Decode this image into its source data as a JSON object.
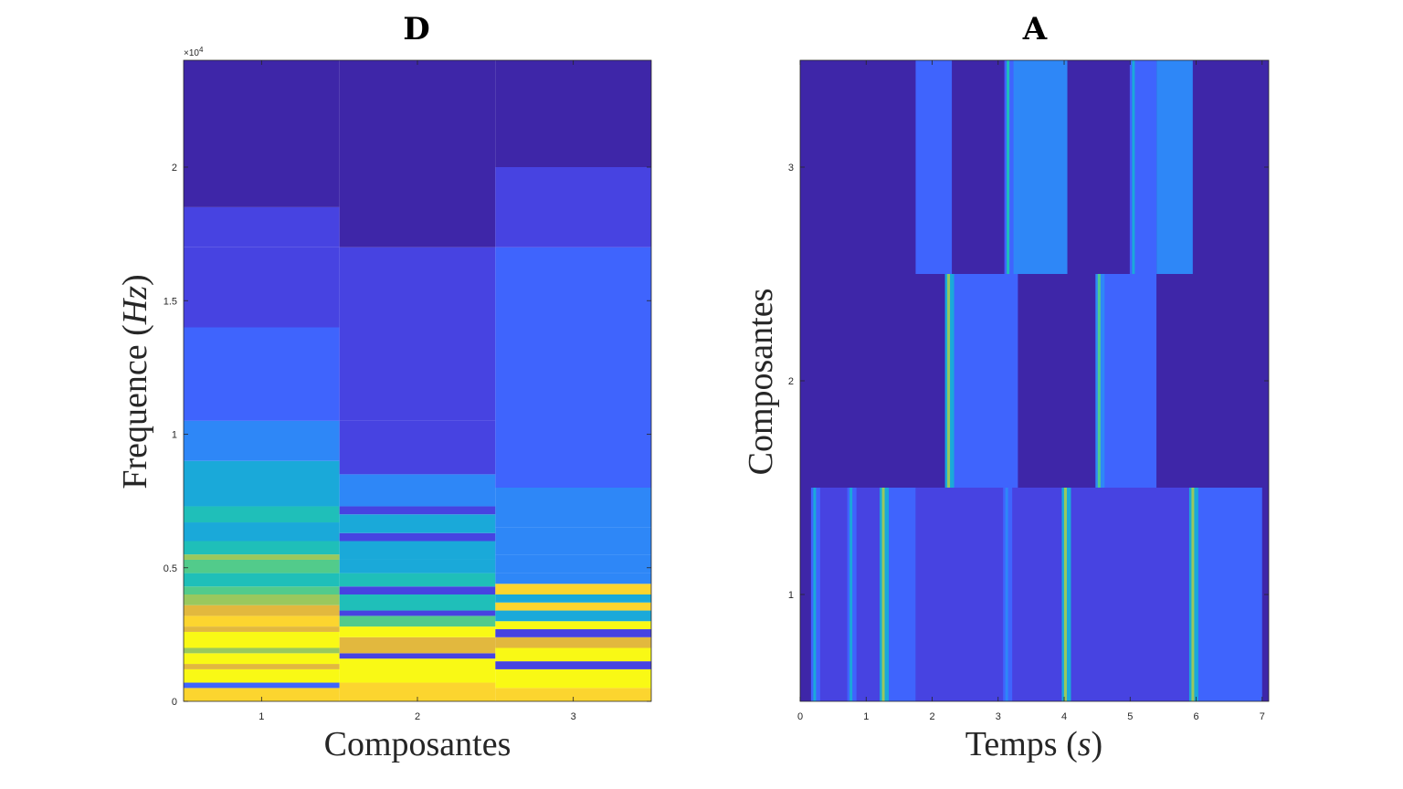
{
  "colormap": [
    "#3e26a8",
    "#4743e1",
    "#3f64fd",
    "#2e87f7",
    "#1aa9d9",
    "#1fbfb9",
    "#52cb8b",
    "#99c85e",
    "#e2b83e",
    "#fcd52f",
    "#f9f915"
  ],
  "chart_data": [
    {
      "type": "heatmap",
      "title": "D",
      "xlabel": "Composantes",
      "ylabel": "Frequence (Hz)",
      "ylabel_parts": [
        "Frequence (",
        "Hz",
        ")"
      ],
      "xlim": [
        0.5,
        3.5
      ],
      "ylim": [
        0,
        24000
      ],
      "x_ticks": [
        1,
        2,
        3
      ],
      "x_tick_labels": [
        "1",
        "2",
        "3"
      ],
      "y_ticks": [
        0,
        5000,
        10000,
        15000,
        20000
      ],
      "y_tick_labels": [
        "0",
        "0.5",
        "1",
        "1.5",
        "2"
      ],
      "y_exponent_label": "×10",
      "y_exponent_power": "4",
      "grid": false,
      "columns": [
        {
          "component": 1,
          "bands": [
            {
              "from": 0,
              "to": 500,
              "level": 9
            },
            {
              "from": 500,
              "to": 700,
              "level": 2
            },
            {
              "from": 700,
              "to": 1200,
              "level": 10
            },
            {
              "from": 1200,
              "to": 1400,
              "level": 8
            },
            {
              "from": 1400,
              "to": 1800,
              "level": 10
            },
            {
              "from": 1800,
              "to": 2000,
              "level": 7
            },
            {
              "from": 2000,
              "to": 2600,
              "level": 10
            },
            {
              "from": 2600,
              "to": 2800,
              "level": 8
            },
            {
              "from": 2800,
              "to": 3200,
              "level": 9
            },
            {
              "from": 3200,
              "to": 3600,
              "level": 8
            },
            {
              "from": 3600,
              "to": 4000,
              "level": 7
            },
            {
              "from": 4000,
              "to": 4300,
              "level": 6
            },
            {
              "from": 4300,
              "to": 4800,
              "level": 5
            },
            {
              "from": 4800,
              "to": 5300,
              "level": 6
            },
            {
              "from": 5300,
              "to": 5500,
              "level": 7
            },
            {
              "from": 5500,
              "to": 6000,
              "level": 5
            },
            {
              "from": 6000,
              "to": 6700,
              "level": 4
            },
            {
              "from": 6700,
              "to": 7300,
              "level": 5
            },
            {
              "from": 7300,
              "to": 9000,
              "level": 4
            },
            {
              "from": 9000,
              "to": 10500,
              "level": 3
            },
            {
              "from": 10500,
              "to": 14000,
              "level": 2
            },
            {
              "from": 14000,
              "to": 17000,
              "level": 1
            },
            {
              "from": 17000,
              "to": 18500,
              "level": 1
            },
            {
              "from": 18500,
              "to": 24000,
              "level": 0
            }
          ]
        },
        {
          "component": 2,
          "bands": [
            {
              "from": 0,
              "to": 700,
              "level": 9
            },
            {
              "from": 700,
              "to": 1600,
              "level": 10
            },
            {
              "from": 1600,
              "to": 1800,
              "level": 1
            },
            {
              "from": 1800,
              "to": 2400,
              "level": 8
            },
            {
              "from": 2400,
              "to": 2800,
              "level": 10
            },
            {
              "from": 2800,
              "to": 3200,
              "level": 6
            },
            {
              "from": 3200,
              "to": 3400,
              "level": 1
            },
            {
              "from": 3400,
              "to": 4000,
              "level": 5
            },
            {
              "from": 4000,
              "to": 4300,
              "level": 1
            },
            {
              "from": 4300,
              "to": 4800,
              "level": 5
            },
            {
              "from": 4800,
              "to": 5300,
              "level": 4
            },
            {
              "from": 5300,
              "to": 6000,
              "level": 4
            },
            {
              "from": 6000,
              "to": 6300,
              "level": 1
            },
            {
              "from": 6300,
              "to": 7000,
              "level": 4
            },
            {
              "from": 7000,
              "to": 7300,
              "level": 1
            },
            {
              "from": 7300,
              "to": 8500,
              "level": 3
            },
            {
              "from": 8500,
              "to": 10500,
              "level": 1
            },
            {
              "from": 10500,
              "to": 17000,
              "level": 1
            },
            {
              "from": 17000,
              "to": 24000,
              "level": 0
            }
          ]
        },
        {
          "component": 3,
          "bands": [
            {
              "from": 0,
              "to": 500,
              "level": 9
            },
            {
              "from": 500,
              "to": 1200,
              "level": 10
            },
            {
              "from": 1200,
              "to": 1500,
              "level": 1
            },
            {
              "from": 1500,
              "to": 2000,
              "level": 10
            },
            {
              "from": 2000,
              "to": 2400,
              "level": 8
            },
            {
              "from": 2400,
              "to": 2700,
              "level": 1
            },
            {
              "from": 2700,
              "to": 3000,
              "level": 10
            },
            {
              "from": 3000,
              "to": 3400,
              "level": 4
            },
            {
              "from": 3400,
              "to": 3700,
              "level": 9
            },
            {
              "from": 3700,
              "to": 4000,
              "level": 4
            },
            {
              "from": 4000,
              "to": 4400,
              "level": 9
            },
            {
              "from": 4400,
              "to": 4800,
              "level": 3
            },
            {
              "from": 4800,
              "to": 5500,
              "level": 3
            },
            {
              "from": 5500,
              "to": 6500,
              "level": 3
            },
            {
              "from": 6500,
              "to": 8000,
              "level": 3
            },
            {
              "from": 8000,
              "to": 17000,
              "level": 2
            },
            {
              "from": 17000,
              "to": 20000,
              "level": 1
            },
            {
              "from": 20000,
              "to": 24000,
              "level": 0
            }
          ]
        }
      ]
    },
    {
      "type": "heatmap",
      "title": "A",
      "xlabel": "Temps (s)",
      "ylabel": "Composantes",
      "xlabel_parts": [
        "Temps (",
        "s",
        ")"
      ],
      "xlim": [
        0,
        7.1
      ],
      "ylim": [
        0.5,
        3.5
      ],
      "x_ticks": [
        0,
        1,
        2,
        3,
        4,
        5,
        6,
        7
      ],
      "x_tick_labels": [
        "0",
        "1",
        "2",
        "3",
        "4",
        "5",
        "6",
        "7"
      ],
      "y_ticks": [
        1,
        2,
        3
      ],
      "y_tick_labels": [
        "1",
        "2",
        "3"
      ],
      "grid": false,
      "background_level": 0,
      "rows": [
        {
          "component": 1,
          "t_range": [
            0.2,
            7.0
          ],
          "segments": [
            {
              "from": 0.2,
              "to": 1.25,
              "level": 1
            },
            {
              "from": 1.25,
              "to": 1.75,
              "level": 2
            },
            {
              "from": 1.75,
              "to": 4.0,
              "level": 1
            },
            {
              "from": 4.0,
              "to": 5.9,
              "level": 1
            },
            {
              "from": 5.9,
              "to": 7.0,
              "level": 2
            }
          ],
          "spikes": [
            {
              "t": 0.22,
              "level": 4
            },
            {
              "t": 0.77,
              "level": 4
            },
            {
              "t": 1.26,
              "level": 7
            },
            {
              "t": 3.13,
              "level": 3
            },
            {
              "t": 4.02,
              "level": 7
            },
            {
              "t": 5.95,
              "level": 7
            }
          ]
        },
        {
          "component": 2,
          "t_range": [
            0.2,
            7.0
          ],
          "segments": [
            {
              "from": 0.2,
              "to": 2.2,
              "level": 0
            },
            {
              "from": 2.2,
              "to": 3.3,
              "level": 2
            },
            {
              "from": 3.3,
              "to": 4.5,
              "level": 0
            },
            {
              "from": 4.5,
              "to": 5.4,
              "level": 2
            },
            {
              "from": 5.4,
              "to": 7.0,
              "level": 0
            }
          ],
          "spikes": [
            {
              "t": 2.25,
              "level": 7
            },
            {
              "t": 4.53,
              "level": 6
            }
          ]
        },
        {
          "component": 3,
          "t_range": [
            0.0,
            7.1
          ],
          "segments": [
            {
              "from": 0.0,
              "to": 1.75,
              "level": 0
            },
            {
              "from": 1.75,
              "to": 2.3,
              "level": 2
            },
            {
              "from": 2.3,
              "to": 3.1,
              "level": 0
            },
            {
              "from": 3.1,
              "to": 4.05,
              "level": 3
            },
            {
              "from": 4.05,
              "to": 5.0,
              "level": 0
            },
            {
              "from": 5.0,
              "to": 5.4,
              "level": 2
            },
            {
              "from": 5.4,
              "to": 5.95,
              "level": 3
            },
            {
              "from": 5.95,
              "to": 7.1,
              "level": 0
            }
          ],
          "spikes": [
            {
              "t": 3.15,
              "level": 5
            },
            {
              "t": 5.05,
              "level": 4
            }
          ]
        }
      ]
    }
  ]
}
